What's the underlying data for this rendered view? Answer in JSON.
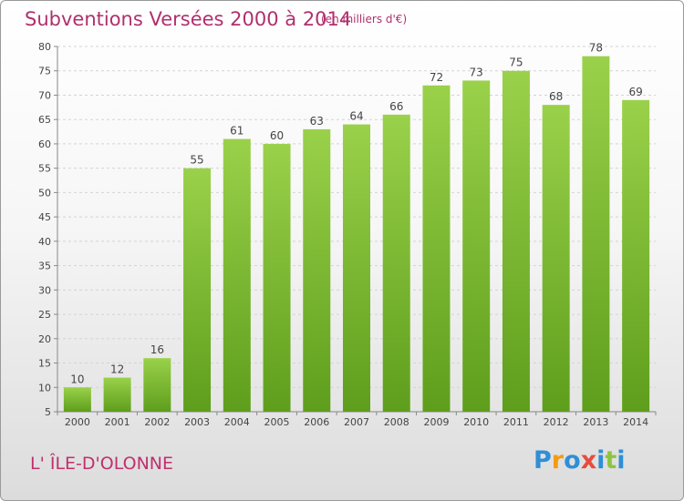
{
  "header": {
    "title": "Subventions Versées 2000 à 2014",
    "subtitle": "(en milliers d'€)"
  },
  "footer": {
    "commune": "L' ÎLE-D'OLONNE",
    "logo_text": "Proxiti",
    "logo_colors": [
      "#2f8fd6",
      "#f39c12",
      "#2f8fd6",
      "#e74c3c",
      "#2f8fd6",
      "#8cc63f",
      "#2f8fd6"
    ]
  },
  "chart_data": {
    "type": "bar",
    "title": "Subventions Versées 2000 à 2014",
    "subtitle": "(en milliers d'€)",
    "categories": [
      "2000",
      "2001",
      "2002",
      "2003",
      "2004",
      "2005",
      "2006",
      "2007",
      "2008",
      "2009",
      "2010",
      "2011",
      "2012",
      "2013",
      "2014"
    ],
    "values": [
      10,
      12,
      16,
      55,
      61,
      60,
      63,
      64,
      66,
      72,
      73,
      75,
      68,
      78,
      69
    ],
    "ylim": [
      5,
      80
    ],
    "yticks": [
      5,
      10,
      15,
      20,
      25,
      30,
      35,
      40,
      45,
      50,
      55,
      60,
      65,
      70,
      75,
      80
    ],
    "grid": true,
    "bar_color": "#7cc033",
    "bar_color_dark": "#5e9e1c"
  }
}
